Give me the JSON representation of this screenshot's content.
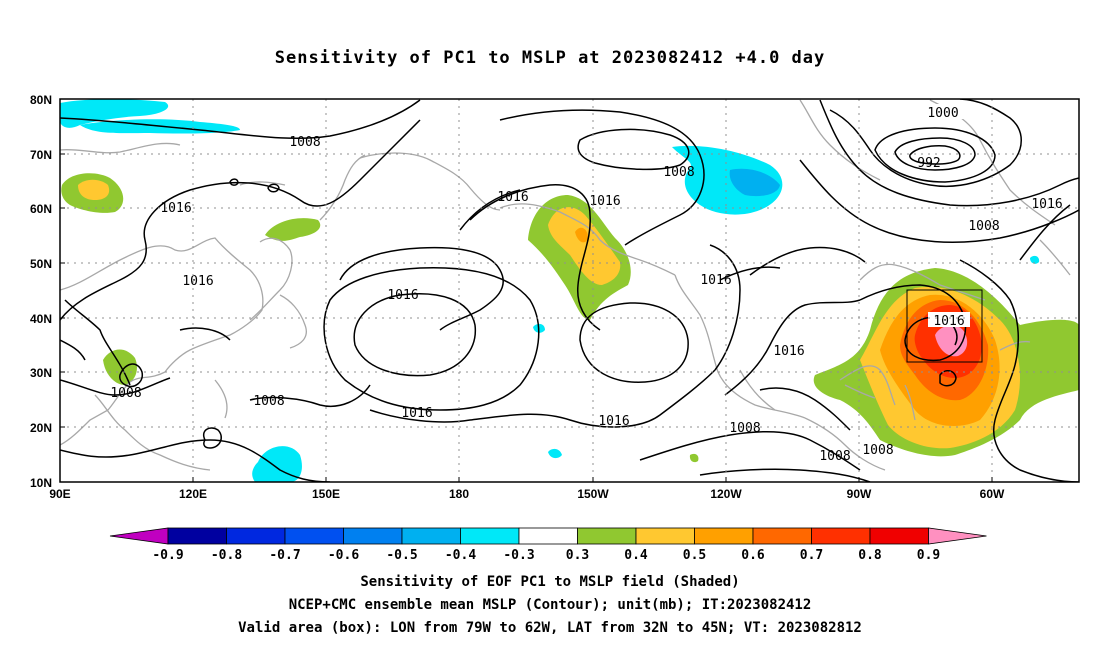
{
  "title": "Sensitivity of PC1 to MSLP at 2023082412 +4.0 day",
  "lat_labels": [
    "80N",
    "70N",
    "60N",
    "50N",
    "40N",
    "30N",
    "20N",
    "10N"
  ],
  "lon_labels": [
    "90E",
    "120E",
    "150E",
    "180",
    "150W",
    "120W",
    "90W",
    "60W"
  ],
  "contour_labels": [
    "1008",
    "1016",
    "1016",
    "1016",
    "1008",
    "1016",
    "1016",
    "1016",
    "1016",
    "1008",
    "1008",
    "1008",
    "1008",
    "1016",
    "1016",
    "1008",
    "1016",
    "1000",
    "992",
    "1008",
    "1016"
  ],
  "colorbar": {
    "labels": [
      "-0.9",
      "-0.8",
      "-0.7",
      "-0.6",
      "-0.5",
      "-0.4",
      "-0.3",
      "0.3",
      "0.4",
      "0.5",
      "0.6",
      "0.7",
      "0.8",
      "0.9"
    ],
    "colors": [
      "#0000a0",
      "#0028e0",
      "#0050f0",
      "#0080f0",
      "#00b0f0",
      "#00e8f8",
      "#ffffff",
      "#90c830",
      "#ffc830",
      "#ffa000",
      "#ff6800",
      "#ff3000",
      "#f00000"
    ],
    "low_tip": "#c000c0",
    "high_tip": "#ff90c0"
  },
  "footer": {
    "line1": "Sensitivity of EOF PC1 to MSLP field (Shaded)",
    "line2": "NCEP+CMC ensemble mean MSLP (Contour); unit(mb); IT:2023082412",
    "line3": "Valid area (box): LON from 79W to 62W, LAT from 32N to 45N; VT: 2023082812"
  }
}
